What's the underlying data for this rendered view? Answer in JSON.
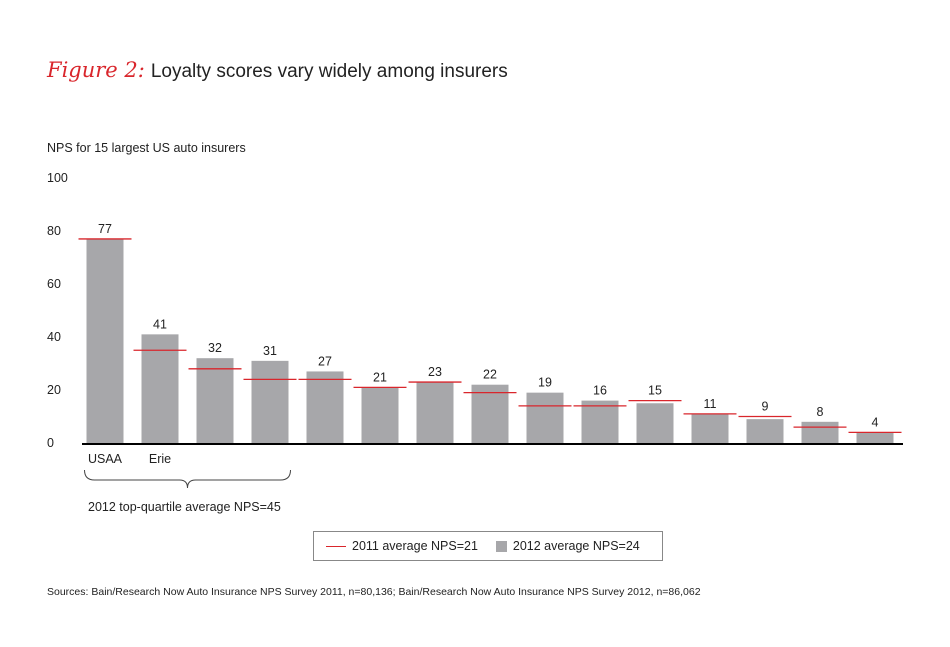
{
  "figure": {
    "label": "Figure 2:",
    "title": "Loyalty scores vary widely among insurers"
  },
  "subtitle": "NPS for 15 largest US auto insurers",
  "chart_data": {
    "type": "bar",
    "categories": [
      "USAA",
      "Erie",
      "",
      "",
      "",
      "",
      "",
      "",
      "",
      "",
      "",
      "",
      "",
      "",
      ""
    ],
    "series": [
      {
        "name": "2012 average NPS=24",
        "values": [
          77,
          41,
          32,
          31,
          27,
          21,
          23,
          22,
          19,
          16,
          15,
          11,
          9,
          8,
          4
        ]
      },
      {
        "name": "2011 average NPS=21",
        "values": [
          77,
          35,
          28,
          24,
          24,
          21,
          23,
          19,
          14,
          14,
          16,
          11,
          10,
          6,
          4
        ]
      }
    ],
    "ylim": [
      0,
      100
    ],
    "yticks": [
      0,
      20,
      40,
      60,
      80,
      100
    ],
    "data_labels": [
      "77",
      "41",
      "32",
      "31",
      "27",
      "21",
      "23",
      "22",
      "19",
      "16",
      "15",
      "11",
      "9",
      "8",
      "4"
    ],
    "bracket_note": "2012 top-quartile average NPS=45",
    "legend_position": "bottom-center",
    "grid": false
  },
  "legend": {
    "line_label": "2011 average NPS=21",
    "bar_label": "2012 average NPS=24"
  },
  "source": "Sources: Bain/Research Now Auto Insurance NPS Survey 2011, n=80,136; Bain/Research Now Auto Insurance NPS Survey 2012, n=86,062",
  "colors": {
    "bar": "#a7a7aa",
    "line": "#d9262c",
    "axis": "#000000",
    "accent": "#d9262c"
  }
}
